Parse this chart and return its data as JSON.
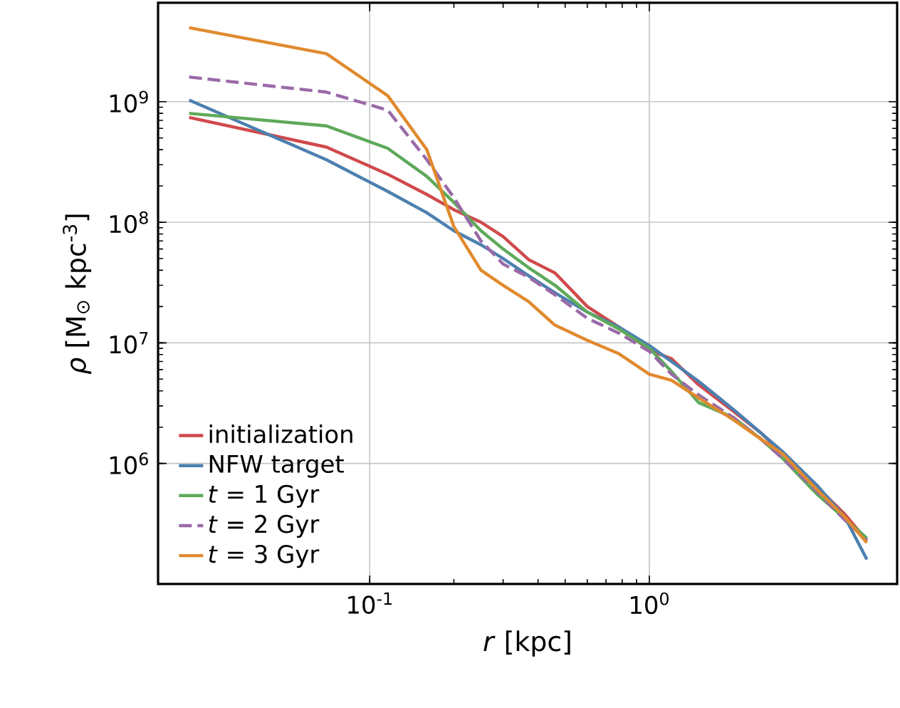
{
  "chart_data": {
    "type": "line",
    "xlabel": "*r* [kpc]",
    "ylabel": "*ρ* [M$_{⊙}$ kpc$^{-3}$]",
    "log": "xy",
    "grid": true,
    "legend": "bottom left",
    "xlim": [
      0.0175,
      7.7
    ],
    "ylim": [
      100000,
      6600000000
    ],
    "xticks": [
      {
        "value": 0.1,
        "label": "10$^{-1}$"
      },
      {
        "value": 1,
        "label": "10$^{0}$"
      }
    ],
    "yticks": [
      {
        "value": 1000000,
        "label": "10$^{6}$"
      },
      {
        "value": 10000000,
        "label": "10$^{7}$"
      },
      {
        "value": 100000000,
        "label": "10$^{8}$"
      },
      {
        "value": 1000000000,
        "label": "10$^{9}$"
      }
    ],
    "x": [
      0.0226,
      0.07,
      0.116,
      0.16,
      0.2,
      0.25,
      0.3,
      0.37,
      0.46,
      0.6,
      0.78,
      1.0,
      1.2,
      1.5,
      2.0,
      2.5,
      3.0,
      4.0,
      5.0,
      6.0
    ],
    "series": [
      {
        "name": "initialization",
        "color": "#d0494b",
        "line_style": "solid",
        "values": [
          740000000,
          420000000,
          250000000,
          170000000,
          127000000,
          100000000,
          76000000,
          49000000,
          38000000,
          20000000,
          13500000,
          8700000,
          7400000,
          4500000,
          2700000,
          1800000,
          1200000,
          630000,
          380000,
          230000
        ]
      },
      {
        "name": "NFW target",
        "color": "#4c80b0",
        "line_style": "solid",
        "values": [
          1030000000,
          330000000,
          180000000,
          120000000,
          85000000,
          65000000,
          50000000,
          36000000,
          26000000,
          18000000,
          13500000,
          9500000,
          7000000,
          4800000,
          2800000,
          1800000,
          1250000,
          650000,
          360000,
          160000
        ]
      },
      {
        "name": "*t* = 1 Gyr",
        "color": "#5ea95a",
        "line_style": "solid",
        "values": [
          800000000,
          630000000,
          410000000,
          240000000,
          146000000,
          85000000,
          60000000,
          42000000,
          30000000,
          18000000,
          13000000,
          9000000,
          5800000,
          3200000,
          2400000,
          1600000,
          1100000,
          550000,
          350000,
          240000
        ]
      },
      {
        "name": "*t* = 2 Gyr",
        "color": "#9a6aa8",
        "line_style": "dashed",
        "values": [
          1600000000,
          1200000000,
          850000000,
          330000000,
          160000000,
          70000000,
          45000000,
          35000000,
          25000000,
          16000000,
          12000000,
          8500000,
          5500000,
          3700000,
          2400000,
          1600000,
          1100000,
          580000,
          340000,
          230000
        ]
      },
      {
        "name": "*t* = 3 Gyr",
        "color": "#e08a2e",
        "line_style": "solid",
        "values": [
          4100000000,
          2500000000,
          1120000000,
          400000000,
          92000000,
          40000000,
          30000000,
          22000000,
          14000000,
          10500000,
          8100000,
          5500000,
          4900000,
          3500000,
          2300000,
          1600000,
          1200000,
          600000,
          360000,
          220000
        ]
      }
    ]
  }
}
